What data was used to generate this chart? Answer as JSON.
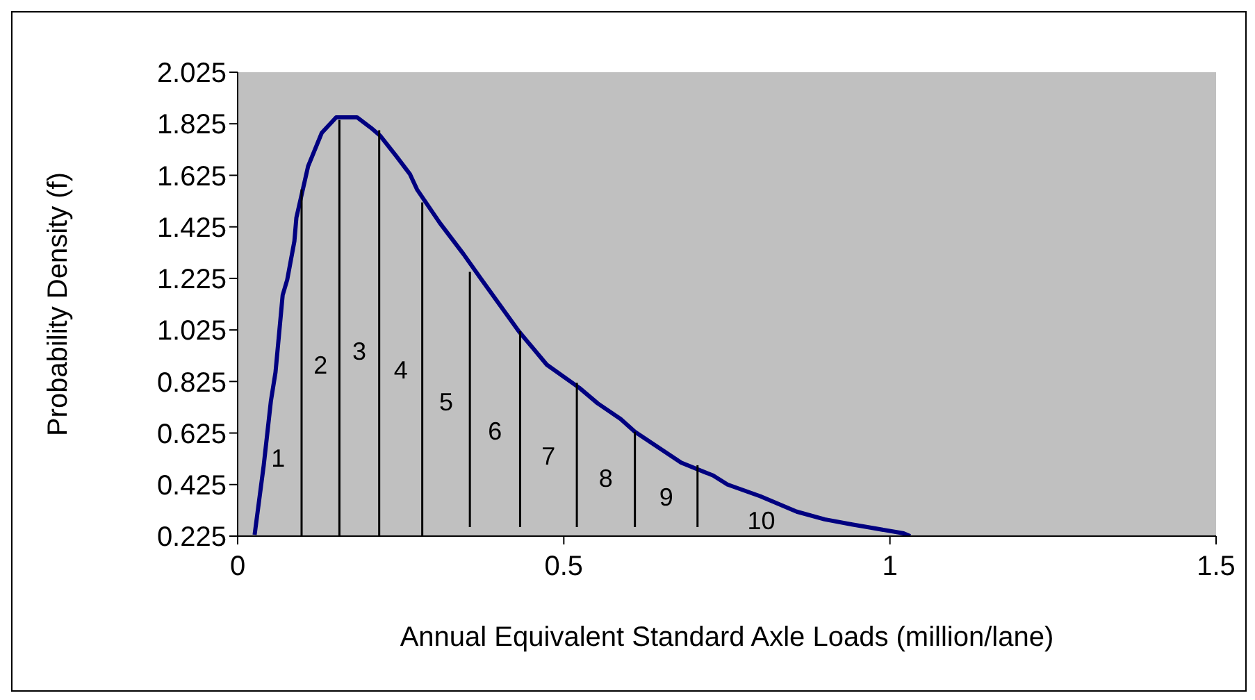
{
  "chart_data": {
    "type": "line",
    "xlabel": "Annual Equivalent Standard Axle Loads (million/lane)",
    "ylabel": "Probability Density (f)",
    "xlim": [
      0,
      1.5
    ],
    "xticks": [
      0,
      0.5,
      1,
      1.5
    ],
    "ylim": [
      0.225,
      2.025
    ],
    "yticks": [
      0.225,
      0.425,
      0.625,
      0.825,
      1.025,
      1.225,
      1.425,
      1.625,
      1.825,
      2.025
    ],
    "grid": false,
    "marker": "none",
    "line_style": "solid",
    "series": [
      {
        "color": "#000080",
        "x": [
          0.026,
          0.04,
          0.051,
          0.058,
          0.069,
          0.076,
          0.087,
          0.09,
          0.108,
          0.129,
          0.151,
          0.183,
          0.204,
          0.218,
          0.243,
          0.264,
          0.275,
          0.31,
          0.346,
          0.374,
          0.431,
          0.474,
          0.524,
          0.552,
          0.587,
          0.609,
          0.68,
          0.729,
          0.751,
          0.801,
          0.857,
          0.9,
          0.942,
          1.021,
          1.031
        ],
        "values": [
          0.23,
          0.5,
          0.75,
          0.86,
          1.16,
          1.22,
          1.37,
          1.46,
          1.66,
          1.79,
          1.85,
          1.85,
          1.81,
          1.78,
          1.7,
          1.63,
          1.57,
          1.44,
          1.32,
          1.22,
          1.02,
          0.89,
          0.8,
          0.74,
          0.68,
          0.63,
          0.51,
          0.46,
          0.425,
          0.38,
          0.32,
          0.29,
          0.27,
          0.236,
          0.225
        ]
      },
      {
        "color": "#000000",
        "x": [
          0.098,
          0.098
        ],
        "values": [
          0.225,
          1.57
        ]
      },
      {
        "color": "#000000",
        "x": [
          0.156,
          0.156
        ],
        "values": [
          0.225,
          1.84
        ]
      },
      {
        "color": "#000000",
        "x": [
          0.217,
          0.217
        ],
        "values": [
          0.225,
          1.8
        ]
      },
      {
        "color": "#000000",
        "x": [
          0.283,
          0.283
        ],
        "values": [
          0.225,
          1.52
        ]
      },
      {
        "color": "#000000",
        "x": [
          0.356,
          0.356
        ],
        "values": [
          0.26,
          1.25
        ]
      },
      {
        "color": "#000000",
        "x": [
          0.433,
          0.433
        ],
        "values": [
          0.26,
          1.02
        ]
      },
      {
        "color": "#000000",
        "x": [
          0.52,
          0.52
        ],
        "values": [
          0.26,
          0.82
        ]
      },
      {
        "color": "#000000",
        "x": [
          0.609,
          0.609
        ],
        "values": [
          0.26,
          0.63
        ]
      },
      {
        "color": "#000000",
        "x": [
          0.705,
          0.705
        ],
        "values": [
          0.26,
          0.5
        ]
      }
    ],
    "annotations": [
      "1",
      "2",
      "3",
      "4",
      "5",
      "6",
      "7",
      "8",
      "9",
      "10"
    ]
  }
}
